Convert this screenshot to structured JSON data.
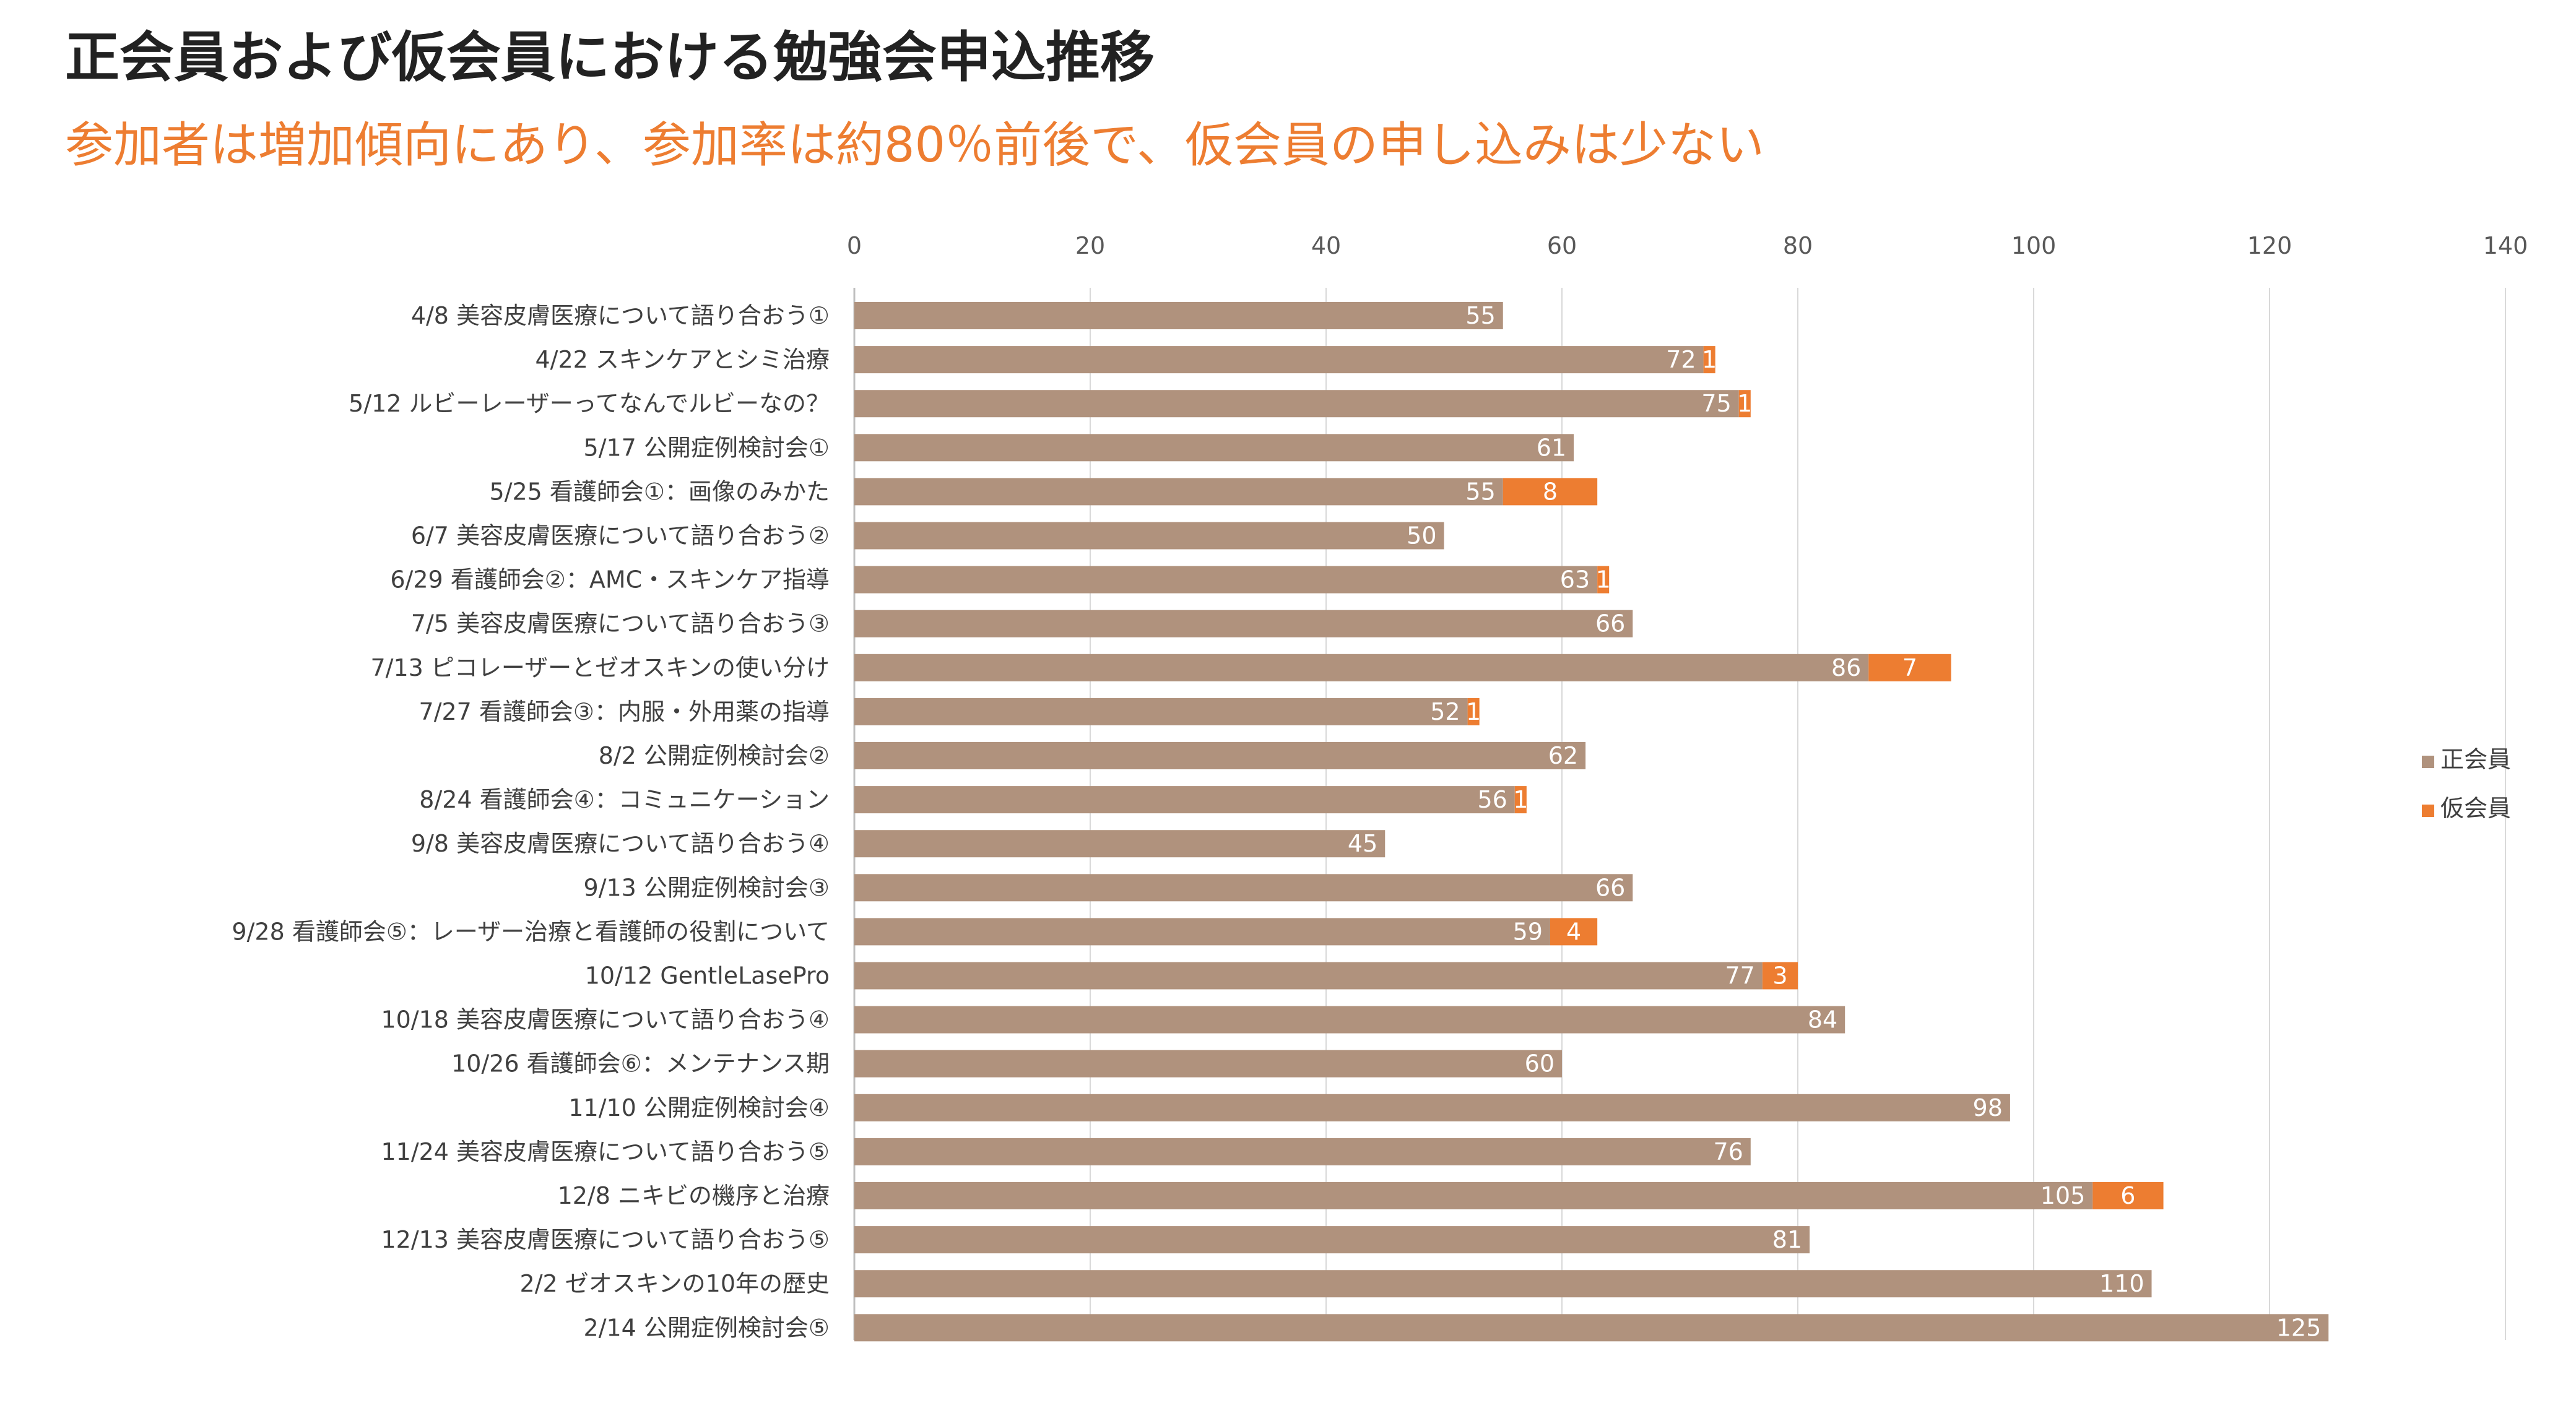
{
  "title": "正会員および仮会員における勉強会申込推移",
  "subtitle": "参加者は増加傾向にあり、参加率は約80％前後で、仮会員の申し込みは少ない",
  "colors": {
    "regular": "#B0927D",
    "provisional": "#ED7D31",
    "title": "#222222",
    "subtitle": "#ED7D31"
  },
  "chart_data": {
    "type": "bar",
    "orientation": "horizontal",
    "stacked": true,
    "xlim": [
      0,
      140
    ],
    "xticks": [
      0,
      20,
      40,
      60,
      80,
      100,
      120,
      140
    ],
    "xaxis_position": "top",
    "grid": true,
    "legend_position": "right",
    "categories": [
      "4/8 美容皮膚医療について語り合おう①",
      "4/22 スキンケアとシミ治療",
      "5/12 ルビーレーザーってなんでルビーなの？",
      "5/17 公開症例検討会①",
      "5/25 看護師会①：画像のみかた",
      "6/7 美容皮膚医療について語り合おう②",
      "6/29 看護師会②：AMC・スキンケア指導",
      "7/5 美容皮膚医療について語り合おう③",
      "7/13 ピコレーザーとゼオスキンの使い分け",
      "7/27 看護師会③：内服・外用薬の指導",
      "8/2 公開症例検討会②",
      "8/24 看護師会④：コミュニケーション",
      "9/8 美容皮膚医療について語り合おう④",
      "9/13 公開症例検討会③",
      "9/28 看護師会⑤：レーザー治療と看護師の役割について",
      "10/12 GentleLasePro",
      "10/18 美容皮膚医療について語り合おう④",
      "10/26 看護師会⑥：メンテナンス期",
      "11/10 公開症例検討会④",
      "11/24 美容皮膚医療について語り合おう⑤",
      "12/8 ニキビの機序と治療",
      "12/13 美容皮膚医療について語り合おう⑤",
      "2/2 ゼオスキンの10年の歴史",
      "2/14 公開症例検討会⑤"
    ],
    "series": [
      {
        "name": "正会員",
        "color": "#B0927D",
        "values": [
          55,
          72,
          75,
          61,
          55,
          50,
          63,
          66,
          86,
          52,
          62,
          56,
          45,
          66,
          59,
          77,
          84,
          60,
          98,
          76,
          105,
          81,
          110,
          125
        ]
      },
      {
        "name": "仮会員",
        "color": "#ED7D31",
        "values": [
          null,
          1,
          1,
          null,
          8,
          null,
          1,
          null,
          7,
          1,
          null,
          1,
          null,
          null,
          4,
          3,
          null,
          null,
          null,
          null,
          6,
          null,
          null,
          null
        ]
      }
    ]
  }
}
